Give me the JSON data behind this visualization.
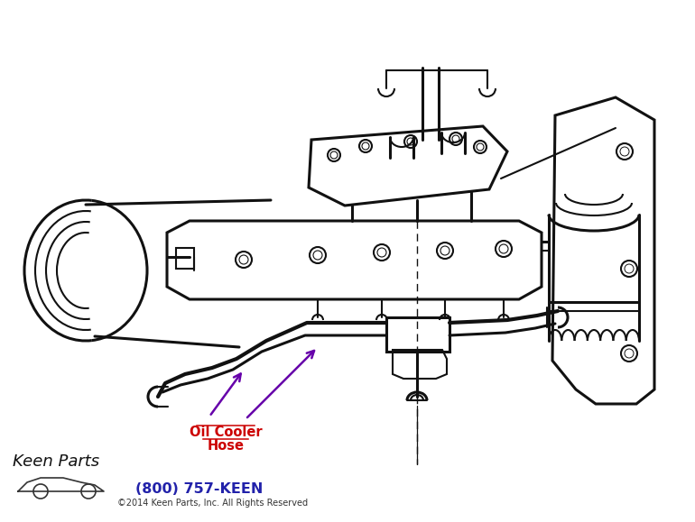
{
  "bg_color": "#ffffff",
  "label_line1": "Oil Cooler",
  "label_line2": "Hose",
  "label_color": "#cc0000",
  "arrow_color": "#6600aa",
  "phone_text": "(800) 757-KEEN",
  "phone_color": "#2222aa",
  "copyright_text": "©2014 Keen Parts, Inc. All Rights Reserved",
  "copyright_color": "#333333",
  "fig_width": 7.7,
  "fig_height": 5.79,
  "dpi": 100
}
